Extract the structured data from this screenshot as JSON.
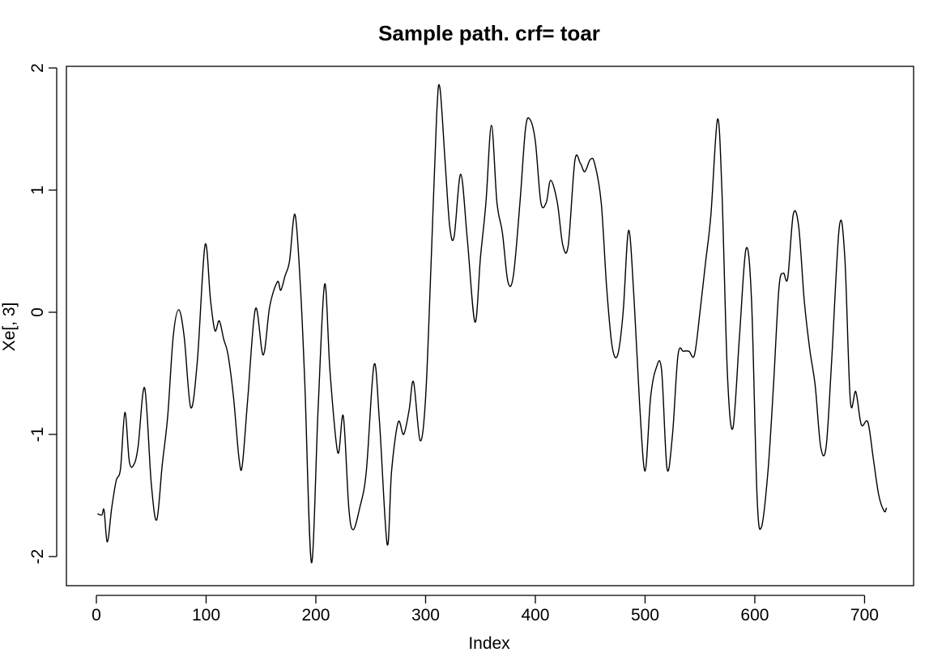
{
  "chart_data": {
    "type": "line",
    "title": "Sample path. crf= toar",
    "xlabel": "Index",
    "ylabel": "Xe[, 3]",
    "xlim": [
      0,
      720
    ],
    "ylim": [
      -2.2,
      2.0
    ],
    "xticks": [
      0,
      100,
      200,
      300,
      400,
      500,
      600,
      700
    ],
    "yticks": [
      -2,
      -1,
      0,
      1,
      2
    ],
    "xtick_labels": [
      "0",
      "100",
      "200",
      "300",
      "400",
      "500",
      "600",
      "700"
    ],
    "ytick_labels": [
      "-2",
      "-1",
      "0",
      "1",
      "2"
    ],
    "grid": false,
    "legend": "none",
    "line_color": "#000000",
    "series": [
      {
        "x": [
          1,
          5,
          7,
          10,
          14,
          18,
          22,
          26,
          30,
          34,
          38,
          44,
          50,
          55,
          60,
          65,
          70,
          75,
          80,
          86,
          92,
          99,
          104,
          108,
          112,
          116,
          120,
          125,
          130,
          133,
          138,
          145,
          152,
          158,
          165,
          168,
          172,
          176,
          181,
          186,
          190,
          196,
          202,
          208,
          213,
          220,
          225,
          230,
          234,
          240,
          246,
          253,
          258,
          265,
          269,
          275,
          280,
          285,
          289,
          295,
          300,
          305,
          310,
          313,
          318,
          322,
          326,
          332,
          338,
          345,
          350,
          355,
          360,
          365,
          370,
          375,
          380,
          386,
          391,
          395,
          400,
          405,
          410,
          414,
          420,
          425,
          430,
          436,
          441,
          445,
          450,
          454,
          460,
          465,
          470,
          475,
          480,
          485,
          490,
          495,
          500,
          505,
          510,
          515,
          520,
          525,
          530,
          535,
          540,
          545,
          550,
          555,
          560,
          566,
          570,
          575,
          580,
          586,
          592,
          597,
          602,
          606,
          612,
          617,
          622,
          626,
          630,
          635,
          640,
          645,
          650,
          655,
          660,
          665,
          670,
          677,
          682,
          687,
          692,
          697,
          703,
          708,
          713,
          718,
          720
        ],
        "y": [
          -1.65,
          -1.66,
          -1.62,
          -1.88,
          -1.6,
          -1.38,
          -1.28,
          -0.82,
          -1.22,
          -1.25,
          -1.1,
          -0.62,
          -1.4,
          -1.7,
          -1.25,
          -0.85,
          -0.2,
          0.02,
          -0.2,
          -0.78,
          -0.4,
          0.55,
          0.1,
          -0.15,
          -0.07,
          -0.22,
          -0.35,
          -0.7,
          -1.2,
          -1.25,
          -0.7,
          0.03,
          -0.35,
          0.05,
          0.25,
          0.18,
          0.3,
          0.42,
          0.8,
          0.2,
          -0.6,
          -2.05,
          -0.8,
          0.23,
          -0.5,
          -1.15,
          -0.85,
          -1.6,
          -1.78,
          -1.6,
          -1.3,
          -0.43,
          -0.9,
          -1.9,
          -1.3,
          -0.9,
          -1.0,
          -0.8,
          -0.57,
          -1.05,
          -0.7,
          0.4,
          1.6,
          1.84,
          1.2,
          0.7,
          0.62,
          1.13,
          0.6,
          -0.08,
          0.45,
          0.9,
          1.53,
          0.9,
          0.65,
          0.25,
          0.3,
          0.9,
          1.5,
          1.58,
          1.4,
          0.9,
          0.9,
          1.08,
          0.9,
          0.55,
          0.55,
          1.24,
          1.22,
          1.15,
          1.25,
          1.22,
          0.9,
          0.2,
          -0.28,
          -0.35,
          0.0,
          0.67,
          0.1,
          -0.75,
          -1.3,
          -0.7,
          -0.46,
          -0.47,
          -1.28,
          -1.0,
          -0.35,
          -0.32,
          -0.32,
          -0.35,
          0.0,
          0.4,
          0.8,
          1.58,
          1.0,
          -0.5,
          -0.95,
          -0.2,
          0.52,
          0.1,
          -1.5,
          -1.76,
          -1.3,
          -0.6,
          0.2,
          0.32,
          0.28,
          0.8,
          0.7,
          0.1,
          -0.3,
          -0.6,
          -1.1,
          -1.1,
          -0.4,
          0.7,
          0.45,
          -0.72,
          -0.65,
          -0.92,
          -0.9,
          -1.2,
          -1.5,
          -1.63,
          -1.6
        ]
      }
    ]
  }
}
